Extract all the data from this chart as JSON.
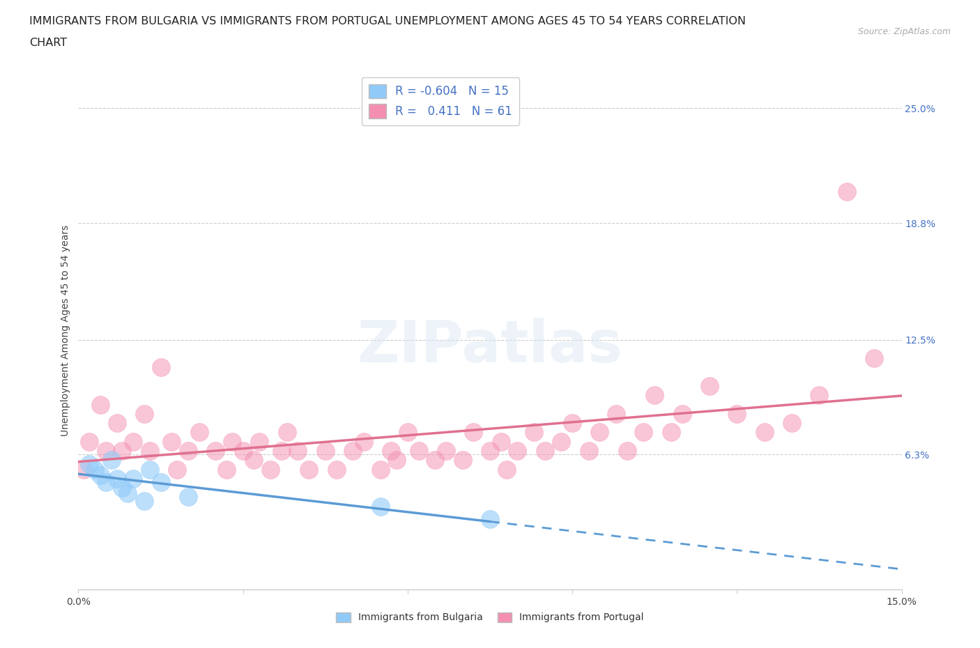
{
  "title_line1": "IMMIGRANTS FROM BULGARIA VS IMMIGRANTS FROM PORTUGAL UNEMPLOYMENT AMONG AGES 45 TO 54 YEARS CORRELATION",
  "title_line2": "CHART",
  "source": "Source: ZipAtlas.com",
  "ylabel": "Unemployment Among Ages 45 to 54 years",
  "xlim": [
    0.0,
    0.15
  ],
  "ylim": [
    -0.01,
    0.27
  ],
  "right_ytick_vals": [
    0.063,
    0.125,
    0.188,
    0.25
  ],
  "right_ytick_labels": [
    "6.3%",
    "12.5%",
    "18.8%",
    "25.0%"
  ],
  "hlines": [
    0.063,
    0.125,
    0.188,
    0.25
  ],
  "legend_R_bulgaria": "-0.604",
  "legend_N_bulgaria": "15",
  "legend_R_portugal": "0.411",
  "legend_N_portugal": "61",
  "color_bulgaria": "#90CAF9",
  "color_portugal": "#F48FB1",
  "line_color_bulgaria": "#5B9BD5",
  "line_color_portugal": "#E07090",
  "background_color": "#ffffff",
  "legend_label_bulgaria": "Immigrants from Bulgaria",
  "legend_label_portugal": "Immigrants from Portugal",
  "bulgaria_scatter_x": [
    0.002,
    0.003,
    0.004,
    0.005,
    0.006,
    0.007,
    0.008,
    0.009,
    0.01,
    0.012,
    0.013,
    0.015,
    0.02,
    0.055,
    0.075
  ],
  "bulgaria_scatter_y": [
    0.058,
    0.055,
    0.052,
    0.048,
    0.06,
    0.05,
    0.045,
    0.042,
    0.05,
    0.038,
    0.055,
    0.048,
    0.04,
    0.035,
    0.028
  ],
  "portugal_scatter_x": [
    0.001,
    0.002,
    0.004,
    0.005,
    0.007,
    0.008,
    0.01,
    0.012,
    0.013,
    0.015,
    0.017,
    0.018,
    0.02,
    0.022,
    0.025,
    0.027,
    0.028,
    0.03,
    0.032,
    0.033,
    0.035,
    0.037,
    0.038,
    0.04,
    0.042,
    0.045,
    0.047,
    0.05,
    0.052,
    0.055,
    0.057,
    0.058,
    0.06,
    0.062,
    0.065,
    0.067,
    0.07,
    0.072,
    0.075,
    0.077,
    0.078,
    0.08,
    0.083,
    0.085,
    0.088,
    0.09,
    0.093,
    0.095,
    0.098,
    0.1,
    0.103,
    0.105,
    0.108,
    0.11,
    0.115,
    0.12,
    0.125,
    0.13,
    0.135,
    0.14,
    0.145
  ],
  "portugal_scatter_y": [
    0.055,
    0.07,
    0.09,
    0.065,
    0.08,
    0.065,
    0.07,
    0.085,
    0.065,
    0.11,
    0.07,
    0.055,
    0.065,
    0.075,
    0.065,
    0.055,
    0.07,
    0.065,
    0.06,
    0.07,
    0.055,
    0.065,
    0.075,
    0.065,
    0.055,
    0.065,
    0.055,
    0.065,
    0.07,
    0.055,
    0.065,
    0.06,
    0.075,
    0.065,
    0.06,
    0.065,
    0.06,
    0.075,
    0.065,
    0.07,
    0.055,
    0.065,
    0.075,
    0.065,
    0.07,
    0.08,
    0.065,
    0.075,
    0.085,
    0.065,
    0.075,
    0.095,
    0.075,
    0.085,
    0.1,
    0.085,
    0.075,
    0.08,
    0.095,
    0.205,
    0.115
  ]
}
